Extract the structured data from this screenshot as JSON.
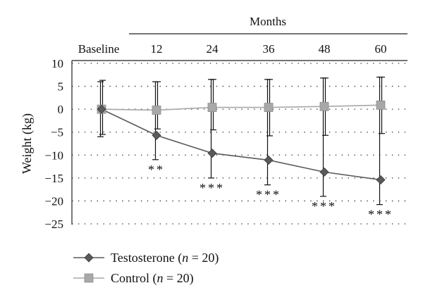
{
  "chart_data": {
    "type": "line",
    "x_header": "Months",
    "categories": [
      "Baseline",
      "12",
      "24",
      "36",
      "48",
      "60"
    ],
    "ylabel": "Weight (kg)",
    "ylim": [
      -25,
      10
    ],
    "yticks": [
      "10",
      "5",
      "0",
      "−5",
      "−10",
      "−15",
      "−20",
      "−25"
    ],
    "ytick_values": [
      10,
      5,
      0,
      -5,
      -10,
      -15,
      -20,
      -25
    ],
    "grid": "dotted horizontal",
    "legend_position": "bottom-left",
    "series": [
      {
        "name": "Testosterone (n = 20)",
        "name_parts": [
          "Testosterone (",
          "n",
          " = 20)"
        ],
        "marker": "diamond",
        "color": "#5a5a5a",
        "values": [
          0,
          -5.7,
          -9.6,
          -11.1,
          -13.7,
          -15.4
        ],
        "error_low": [
          -6.0,
          -11.0,
          -15.0,
          -16.5,
          -19.0,
          -20.8
        ],
        "error_high": [
          6.0,
          6.0,
          6.5,
          6.5,
          6.8,
          7.0
        ],
        "significance": [
          "",
          "**",
          "***",
          "***",
          "***",
          "***"
        ]
      },
      {
        "name": "Control (n = 20)",
        "name_parts": [
          "Control (",
          "n",
          " = 20)"
        ],
        "marker": "square",
        "color": "#a8a8a8",
        "values": [
          0,
          -0.2,
          0.4,
          0.4,
          0.6,
          0.9
        ],
        "error_low": [
          -5.5,
          -4.3,
          -4.5,
          -5.8,
          -5.7,
          -5.3
        ],
        "error_high": [
          6.3,
          6.0,
          6.5,
          6.5,
          6.8,
          7.0
        ]
      }
    ]
  }
}
